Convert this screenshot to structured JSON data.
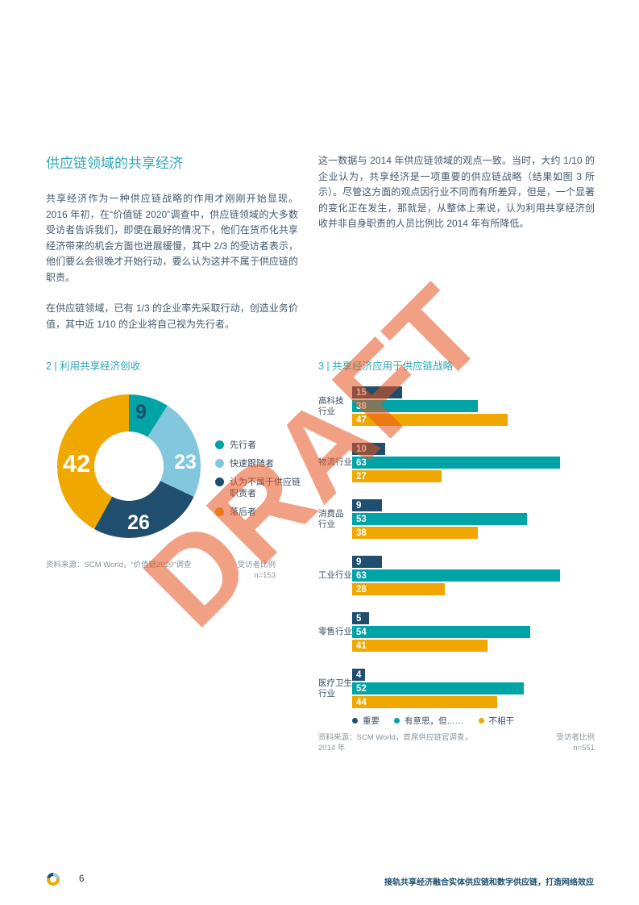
{
  "page": {
    "heading": "供应链领域的共享经济",
    "left_paragraphs": [
      "共享经济作为一种供应链战略的作用才刚刚开始显现。2016 年初，在“价值链 2020”调查中，供应链领域的大多数受访者告诉我们，即便在最好的情况下，他们在货币化共享经济带来的机会方面也进展缓慢，其中 2/3 的受访者表示，他们要么会很晚才开始行动，要么认为这并不属于供应链的职责。",
      "在供应链领域，已有 1/3 的企业率先采取行动，创造业务价值，其中近 1/10 的企业将自己视为先行者。"
    ],
    "right_paragraph": "这一数据与 2014 年供应链领域的观点一致。当时，大约 1/10 的企业认为，共享经济是一项重要的供应链战略（结果如图 3 所示）。尽管这方面的观点因行业不同而有所差异，但是，一个显著的变化正在发生，那就是，从整体上来说，认为利用共享经济创收并非自身职责的人员比例比 2014 年有所降低。",
    "watermark": "DRAFT",
    "footer": {
      "page_number": "6",
      "text": "接轨共享经济融合实体供应链和数字供应链，打造网络效应"
    }
  },
  "chart_data": [
    {
      "type": "pie",
      "title": "2 |  利用共享经济创收",
      "labels": [
        "先行者",
        "快速跟随者",
        "认为不属于供应链职责者",
        "落后者"
      ],
      "values": [
        9,
        23,
        26,
        42
      ],
      "colors": [
        "#00a3a6",
        "#82c7de",
        "#1f4e6e",
        "#f0a800"
      ],
      "source": "资料来源：SCM World，“价值链2020”调查",
      "note_right": "受访者比例",
      "n": "n=153"
    },
    {
      "type": "bar",
      "orientation": "horizontal",
      "title": "3 |  共享经济应用于供应链战略",
      "categories": [
        "高科技\n行业",
        "物流行业",
        "消费品\n行业",
        "工业行业",
        "零售行业",
        "医疗卫生\n行业"
      ],
      "series": [
        {
          "name": "重要",
          "color": "#1f4e6e",
          "values": [
            15,
            10,
            9,
            9,
            5,
            4
          ]
        },
        {
          "name": "有意思，但……",
          "color": "#00a3a6",
          "values": [
            38,
            63,
            53,
            63,
            54,
            52
          ]
        },
        {
          "name": "不相干",
          "color": "#f0a800",
          "values": [
            47,
            27,
            38,
            28,
            41,
            44
          ]
        }
      ],
      "xlim": [
        0,
        70
      ],
      "source": "资料来源：SCM World，首席供应链官调查，2014 年",
      "note_right": "受访者比例",
      "n": "n=551"
    }
  ]
}
